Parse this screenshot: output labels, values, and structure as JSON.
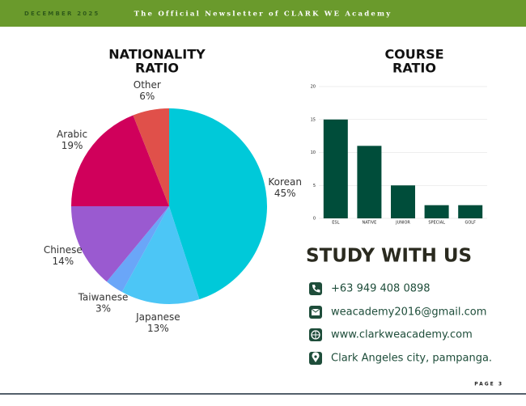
{
  "header": {
    "date": "DECEMBER 2025",
    "title": "The Official Newsletter of CLARK WE Academy"
  },
  "chart_data": [
    {
      "type": "pie",
      "title": [
        "NATIONALITY",
        "RATIO"
      ],
      "categories": [
        "Korean",
        "Japanese",
        "Taiwanese",
        "Chinese",
        "Arabic",
        "Other"
      ],
      "values": [
        45,
        13,
        3,
        14,
        19,
        6
      ],
      "value_labels": [
        "45%",
        "13%",
        "3%",
        "14%",
        "19%",
        "6%"
      ],
      "colors": [
        "#00c9d9",
        "#4cc6f6",
        "#6aa6f8",
        "#9a5ad0",
        "#d0005b",
        "#e0504a"
      ]
    },
    {
      "type": "bar",
      "title": [
        "COURSE",
        "RATIO"
      ],
      "categories": [
        "ESL",
        "NATIVE",
        "JUNIOR",
        "SPECIAL",
        "GOLF"
      ],
      "values": [
        15,
        11,
        5,
        2,
        2
      ],
      "color": "#004d3a",
      "ylim": [
        0,
        20
      ],
      "yticks": [
        0,
        5,
        10,
        15,
        20
      ],
      "grid": true
    }
  ],
  "study": {
    "title": "STUDY WITH US",
    "items": [
      "+63 949 408 0898",
      "weacademy2016@gmail.com",
      "www.clarkweacademy.com",
      "Clark Angeles city, pampanga."
    ]
  },
  "footer": {
    "page": "PAGE 3"
  }
}
